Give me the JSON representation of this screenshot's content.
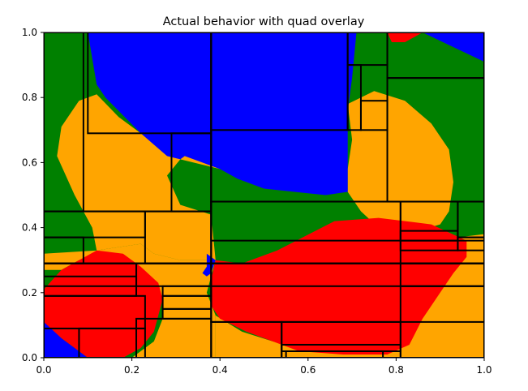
{
  "chart_data": {
    "type": "heatmap",
    "title": "Actual behavior with quad overlay",
    "xlabel": "",
    "ylabel": "",
    "xlim": [
      0,
      1
    ],
    "ylim": [
      0,
      1
    ],
    "x_ticks": [
      "0.0",
      "0.2",
      "0.4",
      "0.6",
      "0.8",
      "1.0"
    ],
    "y_ticks": [
      "0.0",
      "0.2",
      "0.4",
      "0.6",
      "0.8",
      "1.0"
    ],
    "colors": {
      "green": "#008000",
      "blue": "#0000ff",
      "orange": "#ffa500",
      "red": "#ff0000",
      "quad": "#000000"
    },
    "regions": [
      {
        "color": "orange",
        "points": [
          [
            0.12,
            0.81
          ],
          [
            0.17,
            0.74
          ],
          [
            0.25,
            0.66
          ],
          [
            0.32,
            0.63
          ],
          [
            0.4,
            0.58
          ],
          [
            0.31,
            0.61
          ],
          [
            0.28,
            0.56
          ],
          [
            0.31,
            0.47
          ],
          [
            0.38,
            0.44
          ],
          [
            0.39,
            0.3
          ],
          [
            0.31,
            0.3
          ],
          [
            0.25,
            0.32
          ],
          [
            0.22,
            0.35
          ],
          [
            0.12,
            0.33
          ],
          [
            0.11,
            0.4
          ],
          [
            0.07,
            0.5
          ],
          [
            0.03,
            0.62
          ],
          [
            0.04,
            0.71
          ],
          [
            0.08,
            0.79
          ]
        ]
      },
      {
        "color": "orange",
        "points": [
          [
            0.69,
            0.78
          ],
          [
            0.75,
            0.82
          ],
          [
            0.82,
            0.79
          ],
          [
            0.88,
            0.72
          ],
          [
            0.92,
            0.64
          ],
          [
            0.93,
            0.54
          ],
          [
            0.92,
            0.45
          ],
          [
            0.9,
            0.41
          ],
          [
            0.85,
            0.39
          ],
          [
            0.76,
            0.4
          ],
          [
            0.72,
            0.45
          ],
          [
            0.69,
            0.51
          ],
          [
            0.69,
            0.58
          ],
          [
            0.7,
            0.67
          ]
        ]
      },
      {
        "color": "orange",
        "points": [
          [
            0.0,
            0.32
          ],
          [
            0.12,
            0.33
          ],
          [
            0.22,
            0.35
          ],
          [
            0.25,
            0.32
          ],
          [
            0.31,
            0.3
          ],
          [
            0.39,
            0.3
          ],
          [
            0.38,
            0.25
          ],
          [
            0.37,
            0.2
          ],
          [
            0.39,
            0.13
          ],
          [
            0.39,
            0.0
          ],
          [
            0.2,
            0.0
          ],
          [
            0.25,
            0.05
          ],
          [
            0.27,
            0.12
          ],
          [
            0.27,
            0.18
          ],
          [
            0.22,
            0.25
          ],
          [
            0.15,
            0.3
          ],
          [
            0.08,
            0.3
          ],
          [
            0.04,
            0.27
          ],
          [
            0.0,
            0.27
          ]
        ]
      },
      {
        "color": "orange",
        "points": [
          [
            0.39,
            0.13
          ],
          [
            0.45,
            0.08
          ],
          [
            0.52,
            0.05
          ],
          [
            0.61,
            0.02
          ],
          [
            0.73,
            0.02
          ],
          [
            0.8,
            0.04
          ],
          [
            0.83,
            0.1
          ],
          [
            0.89,
            0.22
          ],
          [
            0.94,
            0.31
          ],
          [
            0.94,
            0.37
          ],
          [
            1.0,
            0.38
          ],
          [
            1.0,
            0.0
          ],
          [
            0.39,
            0.0
          ]
        ]
      },
      {
        "color": "orange",
        "points": [
          [
            0.0,
            0.04
          ],
          [
            0.04,
            0.0
          ],
          [
            0.0,
            0.0
          ]
        ]
      },
      {
        "color": "blue",
        "points": [
          [
            0.1,
            1.0
          ],
          [
            0.71,
            1.0
          ],
          [
            0.7,
            0.86
          ],
          [
            0.69,
            0.76
          ],
          [
            0.69,
            0.58
          ],
          [
            0.69,
            0.51
          ],
          [
            0.64,
            0.5
          ],
          [
            0.5,
            0.52
          ],
          [
            0.44,
            0.55
          ],
          [
            0.4,
            0.58
          ],
          [
            0.32,
            0.62
          ],
          [
            0.31,
            0.61
          ],
          [
            0.28,
            0.62
          ],
          [
            0.22,
            0.69
          ],
          [
            0.14,
            0.8
          ],
          [
            0.12,
            0.84
          ]
        ]
      },
      {
        "color": "blue",
        "points": [
          [
            0.86,
            1.0
          ],
          [
            1.0,
            1.0
          ],
          [
            1.0,
            0.91
          ]
        ]
      },
      {
        "color": "blue",
        "points": [
          [
            0.0,
            0.12
          ],
          [
            0.04,
            0.06
          ],
          [
            0.1,
            0.0
          ],
          [
            0.0,
            0.0
          ]
        ]
      },
      {
        "color": "blue",
        "points": [
          [
            0.37,
            0.32
          ],
          [
            0.39,
            0.3
          ],
          [
            0.38,
            0.26
          ],
          [
            0.37,
            0.25
          ],
          [
            0.36,
            0.26
          ],
          [
            0.37,
            0.28
          ],
          [
            0.37,
            0.32
          ]
        ]
      },
      {
        "color": "red",
        "points": [
          [
            0.78,
            1.0
          ],
          [
            0.86,
            1.0
          ],
          [
            0.82,
            0.97
          ],
          [
            0.79,
            0.97
          ]
        ]
      },
      {
        "color": "red",
        "points": [
          [
            0.39,
            0.3
          ],
          [
            0.45,
            0.29
          ],
          [
            0.53,
            0.33
          ],
          [
            0.66,
            0.42
          ],
          [
            0.76,
            0.43
          ],
          [
            0.88,
            0.41
          ],
          [
            0.96,
            0.36
          ],
          [
            0.96,
            0.31
          ],
          [
            0.93,
            0.26
          ],
          [
            0.9,
            0.2
          ],
          [
            0.86,
            0.12
          ],
          [
            0.83,
            0.04
          ],
          [
            0.78,
            0.01
          ],
          [
            0.68,
            0.01
          ],
          [
            0.58,
            0.02
          ],
          [
            0.52,
            0.05
          ],
          [
            0.46,
            0.08
          ],
          [
            0.4,
            0.12
          ],
          [
            0.38,
            0.16
          ],
          [
            0.38,
            0.24
          ]
        ]
      },
      {
        "color": "red",
        "points": [
          [
            0.0,
            0.21
          ],
          [
            0.04,
            0.27
          ],
          [
            0.08,
            0.3
          ],
          [
            0.12,
            0.33
          ],
          [
            0.18,
            0.32
          ],
          [
            0.22,
            0.28
          ],
          [
            0.26,
            0.23
          ],
          [
            0.27,
            0.18
          ],
          [
            0.26,
            0.13
          ],
          [
            0.25,
            0.08
          ],
          [
            0.22,
            0.03
          ],
          [
            0.18,
            0.0
          ],
          [
            0.1,
            0.0
          ],
          [
            0.04,
            0.06
          ],
          [
            0.0,
            0.11
          ]
        ]
      }
    ],
    "quads": [
      [
        0.0,
        0.45,
        0.38,
        1.0
      ],
      [
        0.09,
        0.45,
        0.38,
        1.0
      ],
      [
        0.1,
        0.69,
        0.38,
        1.0
      ],
      [
        0.09,
        0.69,
        0.38,
        0.45
      ],
      [
        0.29,
        0.45,
        0.38,
        0.69
      ],
      [
        0.38,
        0.48,
        1.0,
        1.0
      ],
      [
        0.38,
        0.7,
        0.69,
        1.0
      ],
      [
        0.69,
        0.9,
        0.78,
        1.0
      ],
      [
        0.72,
        0.7,
        0.78,
        0.79
      ],
      [
        0.69,
        0.7,
        0.72,
        0.9
      ],
      [
        0.78,
        0.48,
        1.0,
        0.86
      ],
      [
        0.78,
        0.86,
        1.0,
        1.0
      ],
      [
        0.0,
        0.29,
        0.38,
        0.45
      ],
      [
        0.23,
        0.29,
        0.38,
        0.45
      ],
      [
        0.0,
        0.37,
        0.23,
        0.45
      ],
      [
        0.0,
        0.29,
        0.09,
        0.37
      ],
      [
        0.38,
        0.29,
        1.0,
        0.48
      ],
      [
        0.38,
        0.36,
        0.81,
        0.48
      ],
      [
        0.81,
        0.36,
        0.94,
        0.48
      ],
      [
        0.94,
        0.37,
        1.0,
        0.48
      ],
      [
        0.81,
        0.29,
        1.0,
        0.36
      ],
      [
        0.81,
        0.33,
        0.94,
        0.39
      ],
      [
        0.94,
        0.33,
        1.0,
        0.37
      ],
      [
        0.0,
        0.0,
        0.38,
        0.29
      ],
      [
        0.0,
        0.22,
        0.21,
        0.29
      ],
      [
        0.0,
        0.19,
        0.21,
        0.25
      ],
      [
        0.0,
        0.09,
        0.23,
        0.19
      ],
      [
        0.08,
        0.0,
        0.23,
        0.09
      ],
      [
        0.21,
        0.22,
        0.38,
        0.29
      ],
      [
        0.21,
        0.0,
        0.38,
        0.12
      ],
      [
        0.27,
        0.19,
        0.38,
        0.22
      ],
      [
        0.27,
        0.15,
        0.38,
        0.19
      ],
      [
        0.27,
        0.12,
        0.38,
        0.15
      ],
      [
        0.38,
        0.11,
        1.0,
        0.29
      ],
      [
        0.38,
        0.22,
        1.0,
        0.29
      ],
      [
        0.81,
        0.22,
        1.0,
        0.29
      ],
      [
        0.38,
        0.0,
        0.54,
        0.11
      ],
      [
        0.54,
        0.0,
        0.81,
        0.11
      ],
      [
        0.54,
        0.02,
        0.81,
        0.04
      ],
      [
        0.55,
        0.0,
        0.77,
        0.02
      ],
      [
        0.81,
        0.0,
        1.0,
        0.22
      ]
    ]
  }
}
